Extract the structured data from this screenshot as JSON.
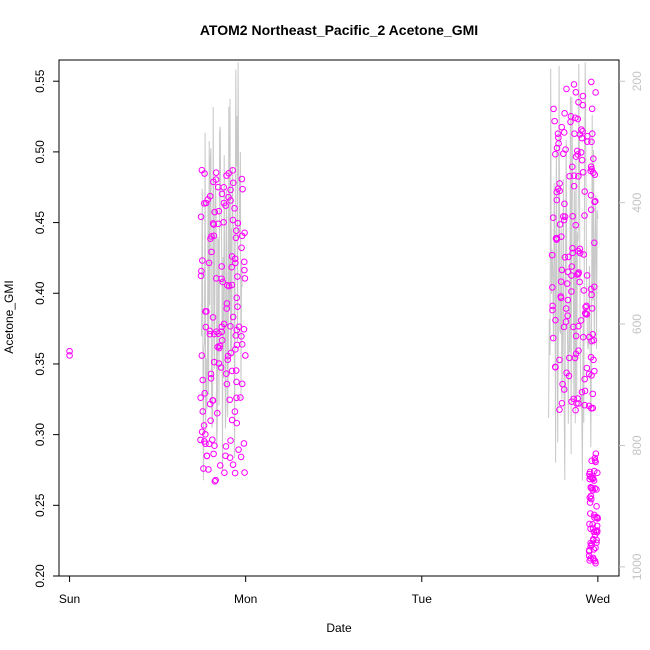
{
  "chart_data": {
    "type": "scatter",
    "title": "ATOM2 Northeast_Pacific_2 Acetone_GMI",
    "xlabel": "Date",
    "ylabel": "Acetone_GMI",
    "x_ticks": [
      "Sun",
      "Mon",
      "Tue",
      "Wed"
    ],
    "x_range_days": [
      -0.06,
      3.12
    ],
    "ylim": [
      0.2,
      0.565
    ],
    "y_ticks": [
      "0.20",
      "0.25",
      "0.30",
      "0.35",
      "0.40",
      "0.45",
      "0.50",
      "0.55"
    ],
    "right_axis": {
      "ticks": [
        "200",
        "400",
        "600",
        "800",
        "1000"
      ],
      "lim_top_to_bottom": [
        165,
        1015
      ],
      "color": "#c4c4c4"
    },
    "grid": false,
    "series": [
      {
        "marker": "open-circle",
        "color": "#ff00ff",
        "clusters": [
          {
            "x_days": [
              0.0,
              0.0
            ],
            "y": [
              0.356,
              0.359
            ]
          },
          {
            "x_days": [
              0.74,
              1.0
            ],
            "y_min": 0.266,
            "y_max": 0.489,
            "count": 150
          },
          {
            "x_days": [
              2.74,
              2.99
            ],
            "y_min": 0.316,
            "y_max": 0.55,
            "count": 160
          },
          {
            "x_days": [
              2.95,
              3.0
            ],
            "y_min": 0.209,
            "y_max": 0.29,
            "count": 60
          }
        ]
      },
      {
        "type": "line",
        "color": "#c8c8c8",
        "x_ranges_days": [
          [
            0.75,
            0.98
          ],
          [
            2.72,
            3.0
          ]
        ],
        "y_right_min": 165,
        "y_right_max": 860
      }
    ]
  }
}
